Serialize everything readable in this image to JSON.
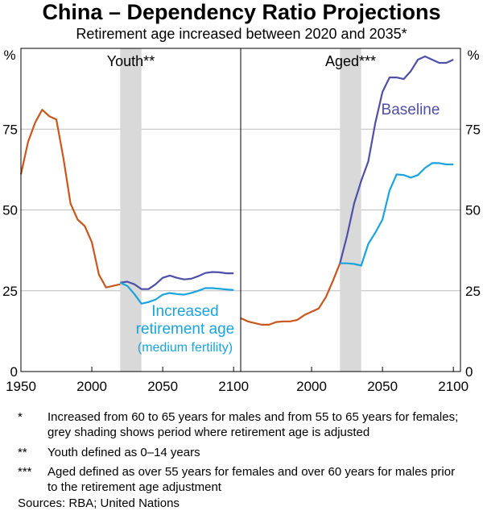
{
  "title": "China – Dependency Ratio Projections",
  "subtitle": "Retirement age increased between 2020 and 2035*",
  "chart_data": [
    {
      "type": "line",
      "panel_title": "Youth**",
      "xlim": [
        1950,
        2105
      ],
      "ylim": [
        0,
        100
      ],
      "x_ticks": [
        1950,
        2000,
        2050,
        2100
      ],
      "y_ticks": [
        0,
        25,
        50,
        75
      ],
      "y_unit": "%",
      "shaded_period": [
        2020,
        2035
      ],
      "series": [
        {
          "key": "history",
          "color": "#c8561d",
          "x": [
            1950,
            1955,
            1960,
            1965,
            1970,
            1975,
            1980,
            1985,
            1990,
            1995,
            2000,
            2005,
            2010,
            2015,
            2020
          ],
          "y": [
            61,
            71,
            77,
            81,
            79,
            78,
            66,
            52,
            47,
            45,
            40,
            30,
            26,
            26.5,
            27
          ]
        },
        {
          "key": "baseline",
          "color": "#4f4fa8",
          "x": [
            2020,
            2025,
            2030,
            2035,
            2040,
            2045,
            2050,
            2055,
            2060,
            2065,
            2070,
            2075,
            2080,
            2085,
            2090,
            2095,
            2100
          ],
          "y": [
            27.5,
            27.8,
            27,
            25.5,
            25.5,
            27,
            29,
            29.7,
            29,
            28.5,
            28.7,
            29.5,
            30.5,
            30.8,
            30.7,
            30.4,
            30.4
          ]
        },
        {
          "key": "increased",
          "color": "#1aa3dd",
          "x": [
            2020,
            2025,
            2030,
            2035,
            2040,
            2045,
            2050,
            2055,
            2060,
            2065,
            2070,
            2075,
            2080,
            2085,
            2090,
            2095,
            2100
          ],
          "y": [
            27.5,
            26.5,
            24,
            21,
            21.5,
            22.3,
            23.8,
            24.3,
            24,
            23.8,
            24.3,
            25,
            25.8,
            25.8,
            25.6,
            25.4,
            25.2
          ]
        }
      ],
      "annotations": [
        {
          "key": "increased",
          "lines": [
            "Increased",
            "retirement age",
            "(medium fertility)"
          ],
          "color": "#1aa3dd"
        }
      ]
    },
    {
      "type": "line",
      "panel_title": "Aged***",
      "xlim": [
        1950,
        2105
      ],
      "ylim": [
        0,
        100
      ],
      "x_ticks": [
        2000,
        2050,
        2100
      ],
      "y_ticks": [
        0,
        25,
        50,
        75
      ],
      "y_unit": "%",
      "shaded_period": [
        2020,
        2035
      ],
      "series": [
        {
          "key": "history",
          "color": "#c8561d",
          "x": [
            1950,
            1955,
            1960,
            1965,
            1970,
            1975,
            1980,
            1985,
            1990,
            1995,
            2000,
            2005,
            2010,
            2015,
            2020
          ],
          "y": [
            16.5,
            15.5,
            15,
            14.5,
            14.5,
            15.3,
            15.5,
            15.5,
            16,
            17.5,
            18.5,
            19.5,
            23,
            28,
            33.5
          ]
        },
        {
          "key": "baseline",
          "color": "#4f4fa8",
          "x": [
            2020,
            2025,
            2030,
            2035,
            2040,
            2045,
            2050,
            2055,
            2060,
            2065,
            2070,
            2075,
            2080,
            2085,
            2090,
            2095,
            2100
          ],
          "y": [
            33.5,
            42,
            52,
            59,
            65,
            77,
            86.5,
            91,
            91,
            90.5,
            93,
            96.5,
            97.5,
            96.5,
            95.5,
            95.5,
            96.5
          ]
        },
        {
          "key": "increased",
          "color": "#1aa3dd",
          "x": [
            2020,
            2025,
            2030,
            2035,
            2040,
            2045,
            2050,
            2055,
            2060,
            2065,
            2070,
            2075,
            2080,
            2085,
            2090,
            2095,
            2100
          ],
          "y": [
            33.5,
            33.5,
            33.3,
            32.8,
            39.5,
            43,
            47,
            56,
            61,
            60.8,
            60,
            60.8,
            63,
            64.5,
            64.5,
            64.1,
            64.1
          ]
        }
      ],
      "annotations": [
        {
          "key": "baseline",
          "lines": [
            "Baseline"
          ],
          "color": "#4f4fa8"
        }
      ]
    }
  ],
  "notes": [
    {
      "mark": "*",
      "text": "Increased from 60 to 65 years for males and from 55 to 65 years for females; grey shading shows period where retirement age is adjusted"
    },
    {
      "mark": "**",
      "text": "Youth defined as 0–14 years"
    },
    {
      "mark": "***",
      "text": "Aged defined as over 55 years for females and over 60 years for males prior to the retirement age adjustment"
    }
  ],
  "sources": "Sources:   RBA; United Nations"
}
